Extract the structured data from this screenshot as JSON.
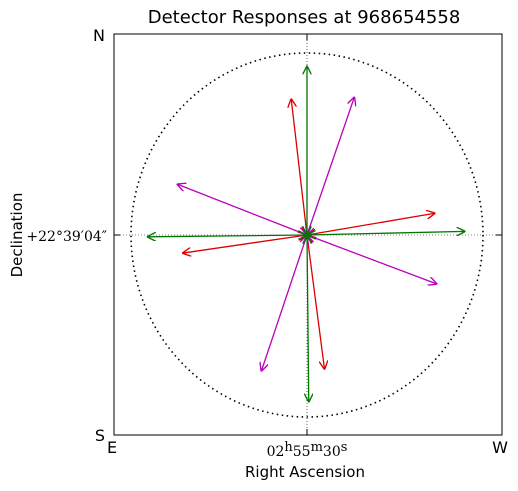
{
  "chart_data": {
    "type": "vector",
    "title": "Detector Responses at 968654558",
    "xlabel": "Right Ascension",
    "ylabel": "Declination",
    "ra_center_label": "02h55m30s",
    "dec_center_label": "+22°39′04″",
    "compass": {
      "top": "N",
      "bottom": "S",
      "left": "E",
      "right": "W"
    },
    "center": [
      0,
      0
    ],
    "extent": [
      -1.1,
      1.1
    ],
    "circle_radius": 1.0,
    "grid": "crosshair",
    "series": [
      {
        "color": "#dd0000",
        "arrows": [
          {
            "x": -0.09,
            "y": 0.75
          },
          {
            "x": 0.1,
            "y": -0.74
          },
          {
            "x": 0.73,
            "y": 0.12
          },
          {
            "x": -0.71,
            "y": -0.1
          }
        ]
      },
      {
        "color": "#bb00bb",
        "arrows": [
          {
            "x": 0.27,
            "y": 0.76
          },
          {
            "x": -0.26,
            "y": -0.75
          },
          {
            "x": -0.74,
            "y": 0.28
          },
          {
            "x": 0.74,
            "y": -0.27
          }
        ]
      },
      {
        "color": "#007700",
        "arrows": [
          {
            "x": -0.91,
            "y": -0.01
          },
          {
            "x": 0.9,
            "y": 0.02
          },
          {
            "x": 0.0,
            "y": 0.93
          },
          {
            "x": 0.01,
            "y": -0.92
          }
        ]
      }
    ]
  }
}
